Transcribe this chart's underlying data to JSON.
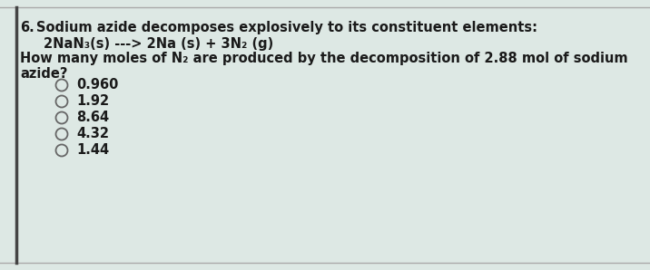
{
  "question_number": "6.",
  "line1_text": "Sodium azide decomposes explosively to its constituent elements:",
  "line2_text": "2NaN₃(s) ---> 2Na (s) + 3N₂ (g)",
  "line3_text": "How many moles of N₂ are produced by the decomposition of 2.88 mol of sodium",
  "line4_text": "azide?",
  "options": [
    "0.960",
    "1.92",
    "8.64",
    "4.32",
    "1.44"
  ],
  "bg_color": "#dde8e4",
  "text_color": "#1a1a1a",
  "border_color": "#aaaaaa",
  "circle_color": "#666666",
  "left_bar_color": "#444444",
  "font_size_header": 10.5,
  "font_size_options": 10.5
}
